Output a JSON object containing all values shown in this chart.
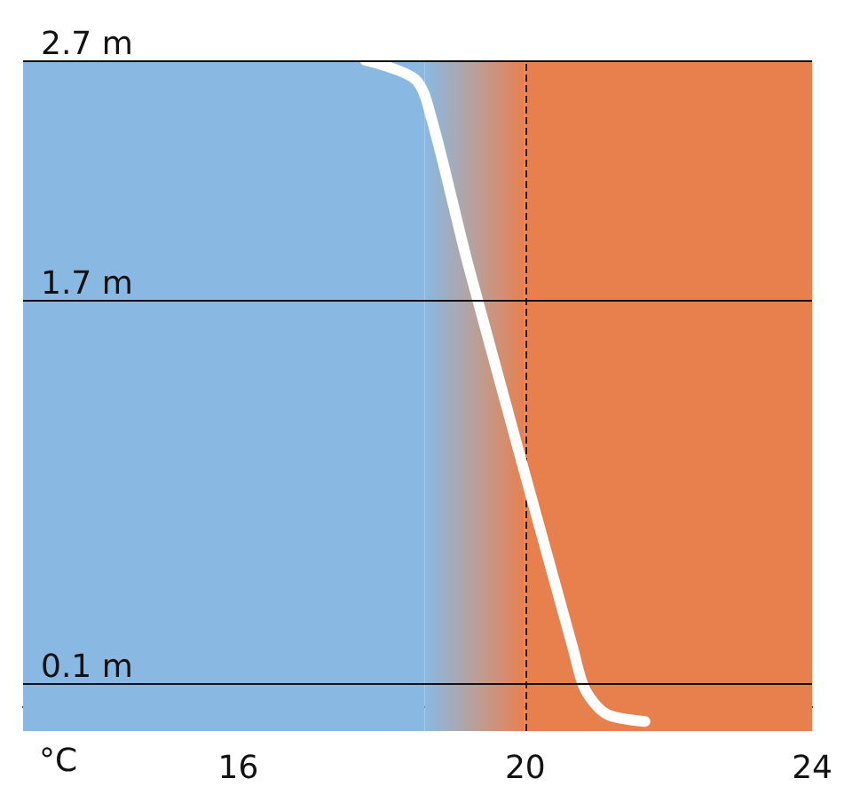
{
  "chart_data": {
    "type": "line",
    "xlabel": "°C",
    "series": [
      {
        "color": "#ffffff",
        "x": [
          17.77,
          18.47,
          18.7,
          19.21,
          20.67,
          20.84,
          21.14,
          21.67
        ],
        "values": [
          2.7,
          2.62,
          2.45,
          1.84,
          0.24,
          0.07,
          -0.03,
          -0.06
        ]
      }
    ],
    "xlim": [
      13,
      24
    ],
    "xticks": [
      16,
      20,
      24
    ],
    "ylim": [
      -0.1,
      2.7
    ],
    "yticks": [
      {
        "value": 0.1,
        "label": "0.1 m"
      },
      {
        "value": 1.7,
        "label": "1.7 m"
      },
      {
        "value": 2.7,
        "label": "2.7 m"
      }
    ],
    "grid": "y",
    "marker": "none",
    "line_style": "solid",
    "ref_lines": [
      {
        "axis": "x",
        "value": 20,
        "line_style": "dashed",
        "color": "#222222"
      }
    ],
    "bands": [
      {
        "axis": "x",
        "from": 13,
        "to": 18.6,
        "color": "#89b9e3"
      },
      {
        "axis": "x",
        "from": 18.6,
        "to": 20,
        "color": "#b9a09a"
      },
      {
        "axis": "x",
        "from": 20,
        "to": 24,
        "color": "#e8804e"
      }
    ]
  }
}
